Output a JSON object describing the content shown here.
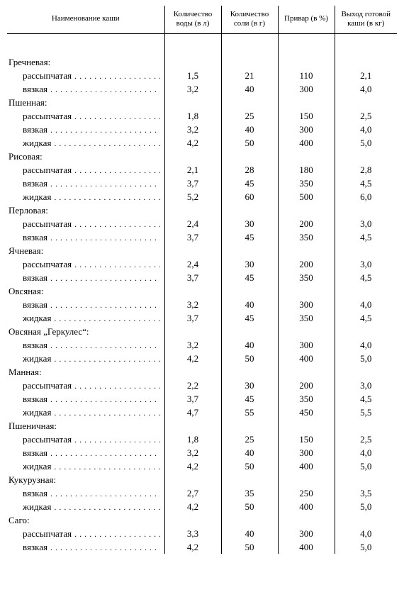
{
  "headers": {
    "name": "Наименование каши",
    "water": "Количество воды (в л)",
    "salt": "Количество соли (в г)",
    "privar": "Привар (в %)",
    "yield": "Выход готовой каши (в кг)"
  },
  "groups": [
    {
      "title": "Гречневая:",
      "rows": [
        {
          "label": "рассыпчатая",
          "water": "1,5",
          "salt": "21",
          "privar": "110",
          "yield": "2,1"
        },
        {
          "label": "вязкая",
          "water": "3,2",
          "salt": "40",
          "privar": "300",
          "yield": "4,0"
        }
      ]
    },
    {
      "title": "Пшенная:",
      "rows": [
        {
          "label": "рассыпчатая",
          "water": "1,8",
          "salt": "25",
          "privar": "150",
          "yield": "2,5"
        },
        {
          "label": "вязкая",
          "water": "3,2",
          "salt": "40",
          "privar": "300",
          "yield": "4,0"
        },
        {
          "label": "жидкая",
          "water": "4,2",
          "salt": "50",
          "privar": "400",
          "yield": "5,0"
        }
      ]
    },
    {
      "title": "Рисовая:",
      "rows": [
        {
          "label": "рассыпчатая",
          "water": "2,1",
          "salt": "28",
          "privar": "180",
          "yield": "2,8"
        },
        {
          "label": "вязкая",
          "water": "3,7",
          "salt": "45",
          "privar": "350",
          "yield": "4,5"
        },
        {
          "label": "жидкая",
          "water": "5,2",
          "salt": "60",
          "privar": "500",
          "yield": "6,0"
        }
      ]
    },
    {
      "title": "Перловая:",
      "rows": [
        {
          "label": "рассыпчатая",
          "water": "2,4",
          "salt": "30",
          "privar": "200",
          "yield": "3,0"
        },
        {
          "label": "вязкая",
          "water": "3,7",
          "salt": "45",
          "privar": "350",
          "yield": "4,5"
        }
      ]
    },
    {
      "title": "Ячневая:",
      "rows": [
        {
          "label": "рассыпчатая",
          "water": "2,4",
          "salt": "30",
          "privar": "200",
          "yield": "3,0"
        },
        {
          "label": "вязкая",
          "water": "3,7",
          "salt": "45",
          "privar": "350",
          "yield": "4,5"
        }
      ]
    },
    {
      "title": "Овсяная:",
      "rows": [
        {
          "label": "вязкая",
          "water": "3,2",
          "salt": "40",
          "privar": "300",
          "yield": "4,0"
        },
        {
          "label": "жидкая",
          "water": "3,7",
          "salt": "45",
          "privar": "350",
          "yield": "4,5"
        }
      ]
    },
    {
      "title": "Овсяная „Геркулес“:",
      "rows": [
        {
          "label": "вязкая",
          "water": "3,2",
          "salt": "40",
          "privar": "300",
          "yield": "4,0"
        },
        {
          "label": "жидкая",
          "water": "4,2",
          "salt": "50",
          "privar": "400",
          "yield": "5,0"
        }
      ]
    },
    {
      "title": "Манная:",
      "rows": [
        {
          "label": "рассыпчатая",
          "water": "2,2",
          "salt": "30",
          "privar": "200",
          "yield": "3,0"
        },
        {
          "label": "вязкая",
          "water": "3,7",
          "salt": "45",
          "privar": "350",
          "yield": "4,5"
        },
        {
          "label": "жидкая",
          "water": "4,7",
          "salt": "55",
          "privar": "450",
          "yield": "5,5"
        }
      ]
    },
    {
      "title": "Пшеничная:",
      "rows": [
        {
          "label": "рассыпчатая",
          "water": "1,8",
          "salt": "25",
          "privar": "150",
          "yield": "2,5"
        },
        {
          "label": "вязкая",
          "water": "3,2",
          "salt": "40",
          "privar": "300",
          "yield": "4,0"
        },
        {
          "label": "жидкая",
          "water": "4,2",
          "salt": "50",
          "privar": "400",
          "yield": "5,0"
        }
      ]
    },
    {
      "title": "Кукурузная:",
      "rows": [
        {
          "label": "вязкая",
          "water": "2,7",
          "salt": "35",
          "privar": "250",
          "yield": "3,5"
        },
        {
          "label": "жидкая",
          "water": "4,2",
          "salt": "50",
          "privar": "400",
          "yield": "5,0"
        }
      ]
    },
    {
      "title": "Саго:",
      "rows": [
        {
          "label": "рассыпчатая",
          "water": "3,3",
          "salt": "40",
          "privar": "300",
          "yield": "4,0"
        },
        {
          "label": "вязкая",
          "water": "4,2",
          "salt": "50",
          "privar": "400",
          "yield": "5,0"
        }
      ]
    }
  ],
  "dot_char": ".",
  "colors": {
    "fg": "#000000",
    "bg": "#ffffff"
  }
}
